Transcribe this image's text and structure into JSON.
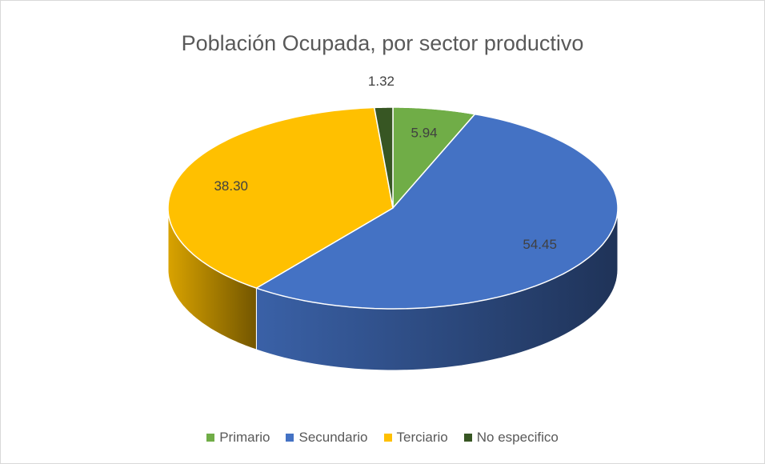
{
  "chart_data": {
    "type": "pie",
    "title": "Población Ocupada, por sector productivo",
    "categories": [
      "Primario",
      "Secundario",
      "Terciario",
      "No especifico"
    ],
    "values": [
      5.94,
      54.45,
      38.3,
      1.32
    ],
    "value_labels": [
      "5.94",
      "54.45",
      "38.30",
      "1.32"
    ],
    "colors": [
      "#70ad47",
      "#4472c4",
      "#ffc000",
      "#375623"
    ],
    "legend": "bottom"
  }
}
